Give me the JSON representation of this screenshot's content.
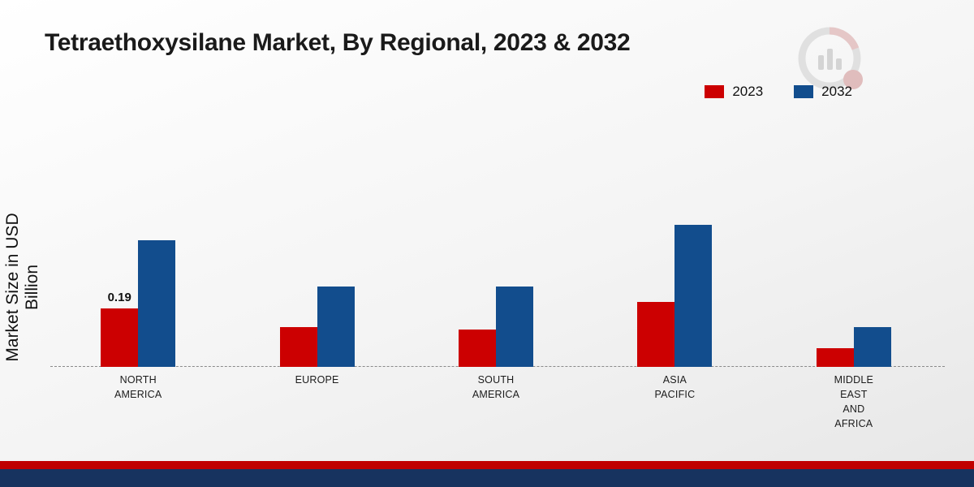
{
  "title": "Tetraethoxysilane Market, By Regional, 2023 & 2032",
  "ylabel": "Market Size in USD Billion",
  "legend": [
    {
      "label": "2023",
      "color": "#cc0001"
    },
    {
      "label": "2032",
      "color": "#124d8d"
    }
  ],
  "colors": {
    "red": "#cc0001",
    "blue": "#124d8d",
    "strip_red": "#c00000",
    "strip_navy": "#17335f"
  },
  "chart_data": {
    "type": "bar",
    "title": "Tetraethoxysilane Market, By Regional, 2023 & 2032",
    "ylabel": "Market Size in USD Billion",
    "xlabel": "",
    "categories": [
      "NORTH AMERICA",
      "EUROPE",
      "SOUTH AMERICA",
      "ASIA PACIFIC",
      "MIDDLE EAST AND AFRICA"
    ],
    "category_lines": [
      [
        "NORTH",
        "AMERICA"
      ],
      [
        "EUROPE"
      ],
      [
        "SOUTH",
        "AMERICA"
      ],
      [
        "ASIA",
        "PACIFIC"
      ],
      [
        "MIDDLE",
        "EAST",
        "AND",
        "AFRICA"
      ]
    ],
    "series": [
      {
        "name": "2023",
        "color": "#cc0001",
        "values": [
          0.19,
          0.13,
          0.12,
          0.21,
          0.06
        ]
      },
      {
        "name": "2032",
        "color": "#124d8d",
        "values": [
          0.41,
          0.26,
          0.26,
          0.46,
          0.13
        ]
      }
    ],
    "data_labels": [
      {
        "series": "2023",
        "category": "NORTH AMERICA",
        "text": "0.19"
      }
    ],
    "ylim": [
      0,
      0.55
    ],
    "grid": false,
    "legend_position": "top-right",
    "baseline_style": "dashed"
  }
}
